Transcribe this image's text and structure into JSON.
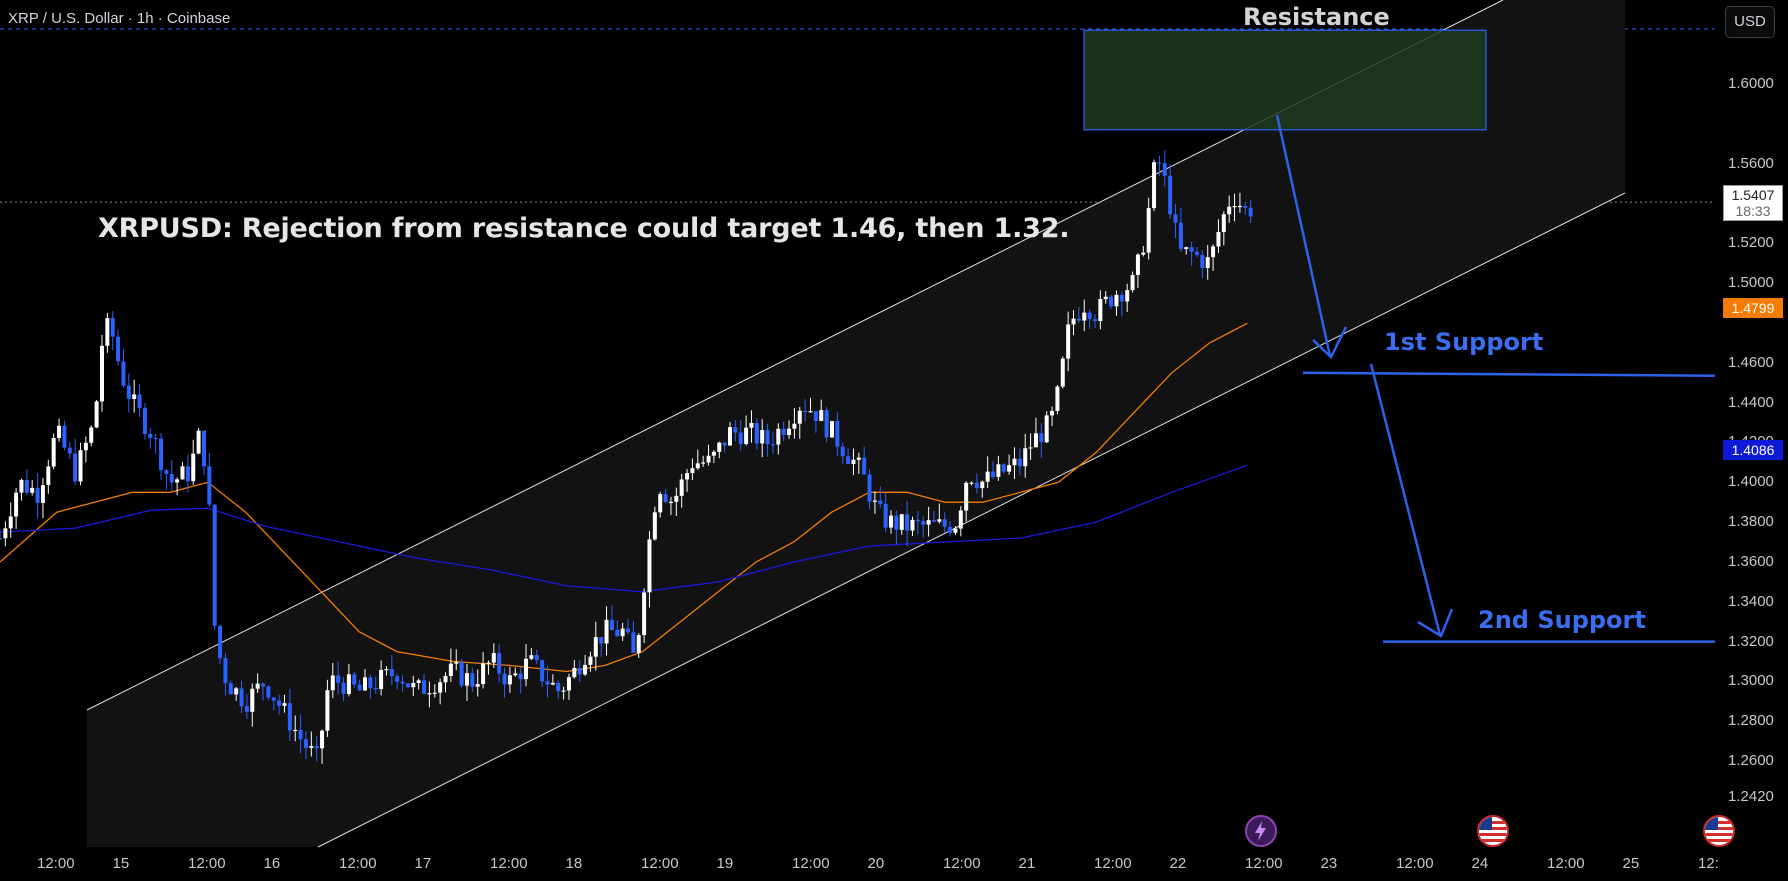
{
  "header": {
    "symbol": "XRP / U.S. Dollar · 1h · Coinbase",
    "currency_button": "USD"
  },
  "annotations": {
    "headline": "XRPUSD: Rejection from resistance could target 1.46, then 1.32.",
    "resistance": "Resistance",
    "support1": "1st Support",
    "support2": "2nd Support"
  },
  "price_axis": {
    "labels": [
      "1.6000",
      "1.5600",
      "1.5200",
      "1.5000",
      "1.4600",
      "1.4400",
      "1.4200",
      "1.4000",
      "1.3800",
      "1.3600",
      "1.3400",
      "1.3200",
      "1.3000",
      "1.2800",
      "1.2600",
      "1.2420"
    ],
    "current_price": "1.5407",
    "countdown": "18:33",
    "orange_ma_value": "1.4799",
    "blue_ma_value": "1.4086"
  },
  "time_axis": {
    "labels": [
      "12:00",
      "15",
      "12:00",
      "16",
      "12:00",
      "17",
      "12:00",
      "18",
      "12:00",
      "19",
      "12:00",
      "20",
      "12:00",
      "21",
      "12:00",
      "22",
      "12:00",
      "23",
      "12:00",
      "24",
      "12:00",
      "25",
      "12:"
    ]
  },
  "colors": {
    "background": "#000000",
    "candle_up": "#ffffff",
    "candle_down": "#2962ff",
    "ma_fast": "#f57c00",
    "ma_slow": "#1a1adb",
    "annotation_blue": "#2d62e8",
    "resistance_zone": "#1f3a1f"
  },
  "chart_data": {
    "type": "candlestick",
    "title": "XRP / U.S. Dollar · 1h · Coinbase",
    "ylim": [
      1.235,
      1.63
    ],
    "y_scale": "linear",
    "resistance_zone": [
      1.577,
      1.627
    ],
    "support_levels": [
      1.455,
      1.32
    ],
    "current_price": 1.5407,
    "close_path": [
      [
        0,
        1.372
      ],
      [
        0.5,
        1.4
      ],
      [
        1,
        1.395
      ],
      [
        1.5,
        1.425
      ],
      [
        2,
        1.405
      ],
      [
        2.5,
        1.43
      ],
      [
        2.7,
        1.47
      ],
      [
        2.9,
        1.48
      ],
      [
        3.2,
        1.455
      ],
      [
        3.5,
        1.44
      ],
      [
        4,
        1.425
      ],
      [
        4.5,
        1.4
      ],
      [
        5,
        1.405
      ],
      [
        5.3,
        1.425
      ],
      [
        5.5,
        1.4
      ],
      [
        5.7,
        1.32
      ],
      [
        6,
        1.3
      ],
      [
        6.5,
        1.29
      ],
      [
        7,
        1.3
      ],
      [
        7.5,
        1.285
      ],
      [
        8,
        1.27
      ],
      [
        8.4,
        1.26
      ],
      [
        8.7,
        1.3
      ],
      [
        9,
        1.3
      ],
      [
        9.5,
        1.295
      ],
      [
        10,
        1.3
      ],
      [
        10.5,
        1.305
      ],
      [
        11,
        1.295
      ],
      [
        11.5,
        1.3
      ],
      [
        12,
        1.305
      ],
      [
        12.5,
        1.3
      ],
      [
        13,
        1.31
      ],
      [
        13.5,
        1.3
      ],
      [
        14,
        1.31
      ],
      [
        14.5,
        1.3
      ],
      [
        14.8,
        1.295
      ],
      [
        15.2,
        1.305
      ],
      [
        15.5,
        1.315
      ],
      [
        16,
        1.325
      ],
      [
        16.5,
        1.325
      ],
      [
        16.8,
        1.31
      ],
      [
        17.1,
        1.36
      ],
      [
        17.4,
        1.4
      ],
      [
        17.8,
        1.39
      ],
      [
        18.3,
        1.41
      ],
      [
        18.8,
        1.41
      ],
      [
        19.3,
        1.425
      ],
      [
        19.8,
        1.425
      ],
      [
        20.3,
        1.42
      ],
      [
        20.8,
        1.43
      ],
      [
        21.2,
        1.44
      ],
      [
        21.6,
        1.435
      ],
      [
        22.2,
        1.42
      ],
      [
        22.8,
        1.405
      ],
      [
        23.2,
        1.385
      ],
      [
        23.5,
        1.38
      ],
      [
        24,
        1.378
      ],
      [
        24.5,
        1.378
      ],
      [
        25,
        1.378
      ],
      [
        25.3,
        1.38
      ],
      [
        25.6,
        1.405
      ],
      [
        26,
        1.4
      ],
      [
        26.5,
        1.405
      ],
      [
        27,
        1.41
      ],
      [
        27.3,
        1.42
      ],
      [
        27.8,
        1.43
      ],
      [
        28,
        1.445
      ],
      [
        28.3,
        1.48
      ],
      [
        28.7,
        1.49
      ],
      [
        29,
        1.485
      ],
      [
        29.5,
        1.495
      ],
      [
        30,
        1.5
      ],
      [
        30.3,
        1.525
      ],
      [
        30.6,
        1.565
      ],
      [
        30.9,
        1.545
      ],
      [
        31.2,
        1.515
      ],
      [
        31.5,
        1.515
      ],
      [
        32,
        1.51
      ],
      [
        32.3,
        1.53
      ],
      [
        32.6,
        1.545
      ],
      [
        33,
        1.535
      ],
      [
        33.2,
        1.5407
      ]
    ],
    "series": [
      {
        "name": "fast MA",
        "path": [
          [
            0,
            1.36
          ],
          [
            1.5,
            1.385
          ],
          [
            2.5,
            1.39
          ],
          [
            3.5,
            1.395
          ],
          [
            4.5,
            1.395
          ],
          [
            5.5,
            1.4
          ],
          [
            6.5,
            1.385
          ],
          [
            7.5,
            1.365
          ],
          [
            8.5,
            1.345
          ],
          [
            9.5,
            1.325
          ],
          [
            10.5,
            1.315
          ],
          [
            12,
            1.31
          ],
          [
            13.5,
            1.308
          ],
          [
            15,
            1.305
          ],
          [
            16,
            1.308
          ],
          [
            17,
            1.315
          ],
          [
            18,
            1.33
          ],
          [
            19,
            1.345
          ],
          [
            20,
            1.36
          ],
          [
            21,
            1.37
          ],
          [
            22,
            1.385
          ],
          [
            23,
            1.395
          ],
          [
            24,
            1.395
          ],
          [
            25,
            1.39
          ],
          [
            26,
            1.39
          ],
          [
            27,
            1.395
          ],
          [
            28,
            1.4
          ],
          [
            29,
            1.415
          ],
          [
            30,
            1.435
          ],
          [
            31,
            1.455
          ],
          [
            32,
            1.47
          ],
          [
            33,
            1.4799
          ]
        ]
      },
      {
        "name": "slow MA",
        "path": [
          [
            0,
            1.375
          ],
          [
            2,
            1.377
          ],
          [
            4,
            1.386
          ],
          [
            5.5,
            1.387
          ],
          [
            7,
            1.378
          ],
          [
            9,
            1.37
          ],
          [
            11,
            1.362
          ],
          [
            13,
            1.356
          ],
          [
            15,
            1.348
          ],
          [
            17,
            1.345
          ],
          [
            19,
            1.35
          ],
          [
            21,
            1.36
          ],
          [
            23,
            1.368
          ],
          [
            25,
            1.37
          ],
          [
            27,
            1.372
          ],
          [
            29,
            1.38
          ],
          [
            31,
            1.395
          ],
          [
            33,
            1.4086
          ]
        ]
      }
    ]
  }
}
